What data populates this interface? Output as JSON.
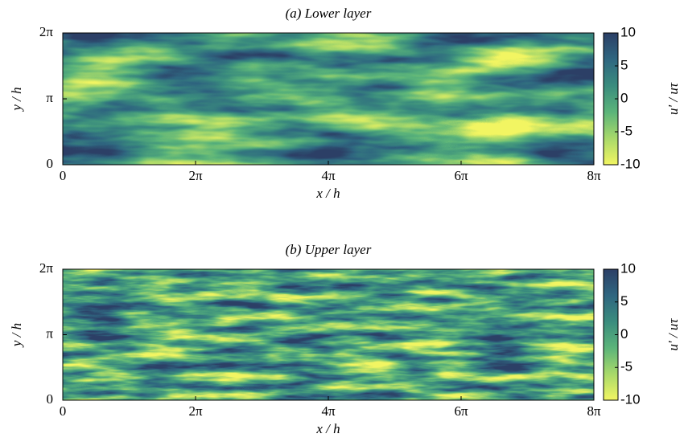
{
  "chart_data": [
    {
      "type": "heatmap",
      "title": "(a) Lower layer",
      "xlabel": "x / h",
      "ylabel": "y / h",
      "xlim": [
        0,
        25.132741228718345
      ],
      "ylim": [
        0,
        6.283185307179586
      ],
      "xticks": [
        0,
        {
          "value": 6.283185307179586,
          "label": "2π"
        },
        {
          "value": 12.566370614359172,
          "label": "4π"
        },
        {
          "value": 18.84955592153876,
          "label": "6π"
        },
        {
          "value": 25.132741228718345,
          "label": "8π"
        }
      ],
      "yticks": [
        0,
        {
          "value": 3.141592653589793,
          "label": "π"
        },
        {
          "value": 6.283185307179586,
          "label": "2π"
        }
      ],
      "colorbar": {
        "label": "u' / uτ",
        "lim": [
          -10,
          10
        ],
        "ticks": [
          -10,
          -5,
          0,
          5,
          10
        ],
        "colors": [
          "#f2f562",
          "#a8d96a",
          "#5bb47a",
          "#3a8c7e",
          "#2f6680",
          "#2c3f66"
        ]
      }
    },
    {
      "type": "heatmap",
      "title": "(b) Upper layer",
      "xlabel": "x / h",
      "ylabel": "y / h",
      "xlim": [
        0,
        25.132741228718345
      ],
      "ylim": [
        0,
        6.283185307179586
      ],
      "xticks": [
        0,
        {
          "value": 6.283185307179586,
          "label": "2π"
        },
        {
          "value": 12.566370614359172,
          "label": "4π"
        },
        {
          "value": 18.84955592153876,
          "label": "6π"
        },
        {
          "value": 25.132741228718345,
          "label": "8π"
        }
      ],
      "yticks": [
        0,
        {
          "value": 3.141592653589793,
          "label": "π"
        },
        {
          "value": 6.283185307179586,
          "label": "2π"
        }
      ],
      "colorbar": {
        "label": "u' / uτ",
        "lim": [
          -10,
          10
        ],
        "ticks": [
          -10,
          -5,
          0,
          5,
          10
        ],
        "colors": [
          "#f2f562",
          "#a8d96a",
          "#5bb47a",
          "#3a8c7e",
          "#2f6680",
          "#2c3f66"
        ]
      }
    }
  ]
}
